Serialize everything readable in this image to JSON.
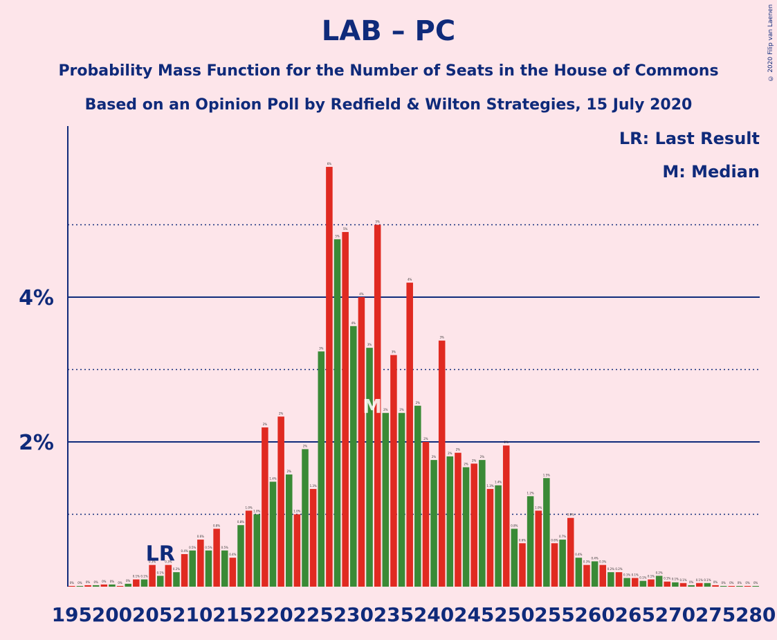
{
  "title": "LAB – PC",
  "subtitle_1": "Probability Mass Function for the Number of Seats in the House of Commons",
  "subtitle_2": "Based on an Opinion Poll by Redfield & Wilton Strategies, 15 July 2020",
  "legend": {
    "lr_text": "LR: Last Result",
    "m_text": "M: Median"
  },
  "copyright": "© 2020 Filip van Laenen",
  "colors": {
    "background": "#fde5ea",
    "green": "#3a8a36",
    "red": "#e02a21",
    "axis": "#0f2a7a"
  },
  "chart_data": {
    "type": "bar",
    "x_start": 195,
    "x_end": 280,
    "ylim": [
      0,
      6.3
    ],
    "y_solid_gridlines": [
      2,
      4
    ],
    "y_dotted_gridlines": [
      1,
      3,
      5
    ],
    "ytick_labels": [
      {
        "value": 2,
        "label": "2%"
      },
      {
        "value": 4,
        "label": "4%"
      }
    ],
    "xtick_labels": [
      "195",
      "200",
      "205",
      "210",
      "215",
      "220",
      "225",
      "230",
      "235",
      "240",
      "245",
      "250",
      "255",
      "260",
      "265",
      "270",
      "275",
      "280"
    ],
    "last_result_seat": 206,
    "last_result_label": "LR",
    "median_seat": 232,
    "median_label": "M",
    "bars": [
      {
        "seat": 195,
        "value": 0.01,
        "label": "0%"
      },
      {
        "seat": 196,
        "value": 0.01,
        "label": "0%"
      },
      {
        "seat": 197,
        "value": 0.02,
        "label": "0%"
      },
      {
        "seat": 198,
        "value": 0.02,
        "label": "0%"
      },
      {
        "seat": 199,
        "value": 0.03,
        "label": "0%"
      },
      {
        "seat": 200,
        "value": 0.03,
        "label": "0%"
      },
      {
        "seat": 201,
        "value": 0.01,
        "label": "0%"
      },
      {
        "seat": 202,
        "value": 0.04,
        "label": "0%"
      },
      {
        "seat": 203,
        "value": 0.1,
        "label": "0.1%"
      },
      {
        "seat": 204,
        "value": 0.1,
        "label": "0.1%"
      },
      {
        "seat": 205,
        "value": 0.3,
        "label": "0.3%"
      },
      {
        "seat": 206,
        "value": 0.15,
        "label": "0.1%"
      },
      {
        "seat": 207,
        "value": 0.3,
        "label": "0.3%"
      },
      {
        "seat": 208,
        "value": 0.2,
        "label": "0.2%"
      },
      {
        "seat": 209,
        "value": 0.45,
        "label": "0.4%"
      },
      {
        "seat": 210,
        "value": 0.5,
        "label": "0.5%"
      },
      {
        "seat": 211,
        "value": 0.65,
        "label": "0.6%"
      },
      {
        "seat": 212,
        "value": 0.5,
        "label": "0.5%"
      },
      {
        "seat": 213,
        "value": 0.8,
        "label": "0.8%"
      },
      {
        "seat": 214,
        "value": 0.5,
        "label": "0.5%"
      },
      {
        "seat": 215,
        "value": 0.4,
        "label": "0.4%"
      },
      {
        "seat": 216,
        "value": 0.85,
        "label": "0.8%"
      },
      {
        "seat": 217,
        "value": 1.05,
        "label": "1.0%"
      },
      {
        "seat": 218,
        "value": 1.0,
        "label": "1.0%"
      },
      {
        "seat": 219,
        "value": 2.2,
        "label": "2%"
      },
      {
        "seat": 220,
        "value": 1.45,
        "label": "1.4%"
      },
      {
        "seat": 221,
        "value": 2.35,
        "label": "2%"
      },
      {
        "seat": 222,
        "value": 1.55,
        "label": "2%"
      },
      {
        "seat": 223,
        "value": 1.0,
        "label": "1.0%"
      },
      {
        "seat": 224,
        "value": 1.9,
        "label": "2%"
      },
      {
        "seat": 225,
        "value": 1.35,
        "label": "1.3%"
      },
      {
        "seat": 226,
        "value": 3.25,
        "label": "3%"
      },
      {
        "seat": 227,
        "value": 5.8,
        "label": "6%"
      },
      {
        "seat": 228,
        "value": 4.8,
        "label": "5%"
      },
      {
        "seat": 229,
        "value": 4.9,
        "label": "5%"
      },
      {
        "seat": 230,
        "value": 3.6,
        "label": "4%"
      },
      {
        "seat": 231,
        "value": 4.0,
        "label": "4%"
      },
      {
        "seat": 232,
        "value": 3.3,
        "label": "3%"
      },
      {
        "seat": 233,
        "value": 5.0,
        "label": "5%"
      },
      {
        "seat": 234,
        "value": 2.4,
        "label": "2%"
      },
      {
        "seat": 235,
        "value": 3.2,
        "label": "3%"
      },
      {
        "seat": 236,
        "value": 2.4,
        "label": "2%"
      },
      {
        "seat": 237,
        "value": 4.2,
        "label": "4%"
      },
      {
        "seat": 238,
        "value": 2.5,
        "label": "2%"
      },
      {
        "seat": 239,
        "value": 2.0,
        "label": "2%"
      },
      {
        "seat": 240,
        "value": 1.75,
        "label": "2%"
      },
      {
        "seat": 241,
        "value": 3.4,
        "label": "3%"
      },
      {
        "seat": 242,
        "value": 1.8,
        "label": "2%"
      },
      {
        "seat": 243,
        "value": 1.85,
        "label": "2%"
      },
      {
        "seat": 244,
        "value": 1.65,
        "label": "2%"
      },
      {
        "seat": 245,
        "value": 1.7,
        "label": "2%"
      },
      {
        "seat": 246,
        "value": 1.75,
        "label": "2%"
      },
      {
        "seat": 247,
        "value": 1.35,
        "label": "1.3%"
      },
      {
        "seat": 248,
        "value": 1.4,
        "label": "1.4%"
      },
      {
        "seat": 249,
        "value": 1.95,
        "label": "2%"
      },
      {
        "seat": 250,
        "value": 0.8,
        "label": "0.8%"
      },
      {
        "seat": 251,
        "value": 0.6,
        "label": "0.6%"
      },
      {
        "seat": 252,
        "value": 1.25,
        "label": "1.2%"
      },
      {
        "seat": 253,
        "value": 1.05,
        "label": "1.0%"
      },
      {
        "seat": 254,
        "value": 1.5,
        "label": "1.5%"
      },
      {
        "seat": 255,
        "value": 0.6,
        "label": "0.6%"
      },
      {
        "seat": 256,
        "value": 0.65,
        "label": "0.7%"
      },
      {
        "seat": 257,
        "value": 0.95,
        "label": "0.9%"
      },
      {
        "seat": 258,
        "value": 0.4,
        "label": "0.4%"
      },
      {
        "seat": 259,
        "value": 0.3,
        "label": "0.3%"
      },
      {
        "seat": 260,
        "value": 0.35,
        "label": "0.4%"
      },
      {
        "seat": 261,
        "value": 0.3,
        "label": "0.3%"
      },
      {
        "seat": 262,
        "value": 0.2,
        "label": "0.2%"
      },
      {
        "seat": 263,
        "value": 0.2,
        "label": "0.2%"
      },
      {
        "seat": 264,
        "value": 0.12,
        "label": "0.1%"
      },
      {
        "seat": 265,
        "value": 0.12,
        "label": "0.1%"
      },
      {
        "seat": 266,
        "value": 0.08,
        "label": "0.1%"
      },
      {
        "seat": 267,
        "value": 0.1,
        "label": "0.1%"
      },
      {
        "seat": 268,
        "value": 0.15,
        "label": "0.2%"
      },
      {
        "seat": 269,
        "value": 0.07,
        "label": "0.1%"
      },
      {
        "seat": 270,
        "value": 0.06,
        "label": "0.1%"
      },
      {
        "seat": 271,
        "value": 0.05,
        "label": "0.1%"
      },
      {
        "seat": 272,
        "value": 0.02,
        "label": "0%"
      },
      {
        "seat": 273,
        "value": 0.05,
        "label": "0.1%"
      },
      {
        "seat": 274,
        "value": 0.05,
        "label": "0.1%"
      },
      {
        "seat": 275,
        "value": 0.02,
        "label": "0%"
      },
      {
        "seat": 276,
        "value": 0.01,
        "label": "0%"
      },
      {
        "seat": 277,
        "value": 0.01,
        "label": "0%"
      },
      {
        "seat": 278,
        "value": 0.01,
        "label": "0%"
      },
      {
        "seat": 279,
        "value": 0.01,
        "label": "0%"
      },
      {
        "seat": 280,
        "value": 0.01,
        "label": "0%"
      }
    ]
  }
}
